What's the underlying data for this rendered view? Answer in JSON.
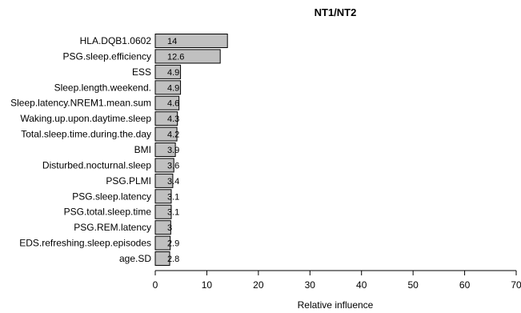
{
  "chart_data": {
    "type": "bar",
    "orientation": "horizontal",
    "title": "NT1/NT2",
    "xlabel": "Relative influence",
    "ylabel": "",
    "xlim": [
      0,
      70
    ],
    "xticks": [
      0,
      10,
      20,
      30,
      40,
      50,
      60,
      70
    ],
    "grid": false,
    "bar_color": "#c0c0c0",
    "categories": [
      "HLA.DQB1.0602",
      "PSG.sleep.efficiency",
      "ESS",
      "Sleep.length.weekend.",
      "Sleep.latency.NREM1.mean.sum",
      "Waking.up.upon.daytime.sleep",
      "Total.sleep.time.during.the.day",
      "BMI",
      "Disturbed.nocturnal.sleep",
      "PSG.PLMI",
      "PSG.sleep.latency",
      "PSG.total.sleep.time",
      "PSG.REM.latency",
      "EDS.refreshing.sleep.episodes",
      "age.SD"
    ],
    "values": [
      14,
      12.6,
      4.9,
      4.9,
      4.6,
      4.3,
      4.2,
      3.9,
      3.6,
      3.4,
      3.1,
      3.1,
      3,
      2.9,
      2.8
    ]
  }
}
